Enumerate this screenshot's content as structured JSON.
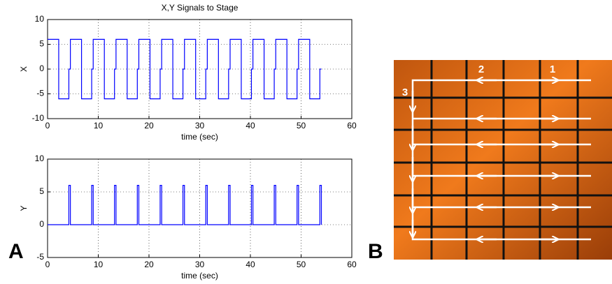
{
  "chart_data": [
    {
      "type": "line",
      "title": "X,Y Signals to Stage",
      "x_label": "time (sec)",
      "y_label": "X",
      "xlim": [
        0,
        60
      ],
      "xticks": [
        0,
        10,
        20,
        30,
        40,
        50,
        60
      ],
      "ylim": [
        -10,
        10
      ],
      "yticks": [
        -10,
        -5,
        0,
        5,
        10
      ],
      "grid": true,
      "series": [
        {
          "color": "#0000ff",
          "x": [
            0,
            2.2,
            2.2,
            4.2,
            4.2,
            4.5,
            4.5,
            6.7,
            6.7,
            8.7,
            8.7,
            9,
            9,
            11.2,
            11.2,
            13.2,
            13.2,
            13.5,
            13.5,
            15.7,
            15.7,
            17.7,
            17.7,
            18,
            18,
            20.2,
            20.2,
            22.2,
            22.2,
            22.5,
            22.5,
            24.7,
            24.7,
            26.7,
            26.7,
            27,
            27,
            29.2,
            29.2,
            31.2,
            31.2,
            31.5,
            31.5,
            33.7,
            33.7,
            35.7,
            35.7,
            36,
            36,
            38.2,
            38.2,
            40.2,
            40.2,
            40.5,
            40.5,
            42.7,
            42.7,
            44.7,
            44.7,
            45,
            45,
            47.2,
            47.2,
            49.2,
            49.2,
            49.5,
            49.5,
            51.7,
            51.7,
            53.7,
            53.7,
            54
          ],
          "values": [
            6,
            6,
            -6,
            -6,
            0,
            0,
            6,
            6,
            -6,
            -6,
            0,
            0,
            6,
            6,
            -6,
            -6,
            0,
            0,
            6,
            6,
            -6,
            -6,
            0,
            0,
            6,
            6,
            -6,
            -6,
            0,
            0,
            6,
            6,
            -6,
            -6,
            0,
            0,
            6,
            6,
            -6,
            -6,
            0,
            0,
            6,
            6,
            -6,
            -6,
            0,
            0,
            6,
            6,
            -6,
            -6,
            0,
            0,
            6,
            6,
            -6,
            -6,
            0,
            0,
            6,
            6,
            -6,
            -6,
            0,
            0,
            6,
            6,
            -6,
            -6,
            0,
            0
          ]
        }
      ]
    },
    {
      "type": "line",
      "x_label": "time (sec)",
      "y_label": "Y",
      "xlim": [
        0,
        60
      ],
      "xticks": [
        0,
        10,
        20,
        30,
        40,
        50,
        60
      ],
      "ylim": [
        -5,
        10
      ],
      "yticks": [
        -5,
        0,
        5,
        10
      ],
      "grid": true,
      "series": [
        {
          "color": "#0000ff",
          "x": [
            0,
            4.2,
            4.2,
            4.5,
            4.5,
            8.7,
            8.7,
            9,
            9,
            13.2,
            13.2,
            13.5,
            13.5,
            17.7,
            17.7,
            18,
            18,
            22.2,
            22.2,
            22.5,
            22.5,
            26.7,
            26.7,
            27,
            27,
            31.2,
            31.2,
            31.5,
            31.5,
            35.7,
            35.7,
            36,
            36,
            40.2,
            40.2,
            40.5,
            40.5,
            44.7,
            44.7,
            45,
            45,
            49.2,
            49.2,
            49.5,
            49.5,
            53.7,
            53.7,
            54,
            54
          ],
          "values": [
            0,
            0,
            6,
            6,
            0,
            0,
            6,
            6,
            0,
            0,
            6,
            6,
            0,
            0,
            6,
            6,
            0,
            0,
            6,
            6,
            0,
            0,
            6,
            6,
            0,
            0,
            6,
            6,
            0,
            0,
            6,
            6,
            0,
            0,
            6,
            6,
            0,
            0,
            6,
            6,
            0,
            0,
            6,
            6,
            0,
            0,
            6,
            6,
            0
          ]
        }
      ]
    }
  ],
  "panel_labels": [
    "A",
    "B"
  ],
  "diagram": {
    "labels": [
      "1",
      "2",
      "3"
    ]
  }
}
